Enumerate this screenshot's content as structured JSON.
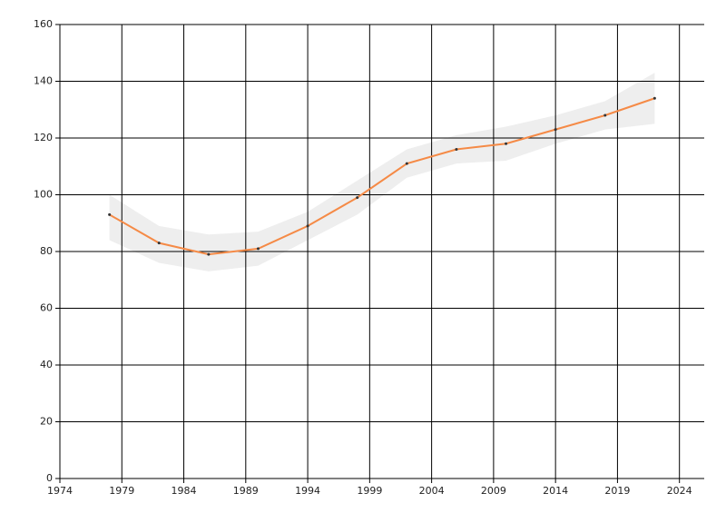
{
  "chart_data": {
    "type": "line",
    "x": [
      1978,
      1982,
      1986,
      1990,
      1994,
      1998,
      2002,
      2006,
      2010,
      2014,
      2018,
      2022
    ],
    "series": [
      {
        "color": "#f58a46",
        "values": [
          93,
          83,
          79,
          81,
          89,
          99,
          111,
          116,
          118,
          123,
          128,
          134
        ]
      }
    ],
    "band": {
      "color": "#eeeeee",
      "upper": [
        100,
        89,
        86,
        87,
        94,
        105,
        116,
        121,
        124,
        128,
        133,
        143
      ],
      "lower": [
        84,
        76,
        73,
        75,
        84,
        93,
        106,
        111,
        112,
        118,
        123,
        125
      ]
    },
    "xlim": [
      1974,
      2026
    ],
    "xticks": [
      1974,
      1979,
      1984,
      1989,
      1994,
      1999,
      2004,
      2009,
      2014,
      2019,
      2024
    ],
    "ylim": [
      0,
      160
    ],
    "yticks": [
      0,
      20,
      40,
      60,
      80,
      100,
      120,
      140,
      160
    ],
    "grid": true,
    "marker_color": "#333333"
  }
}
